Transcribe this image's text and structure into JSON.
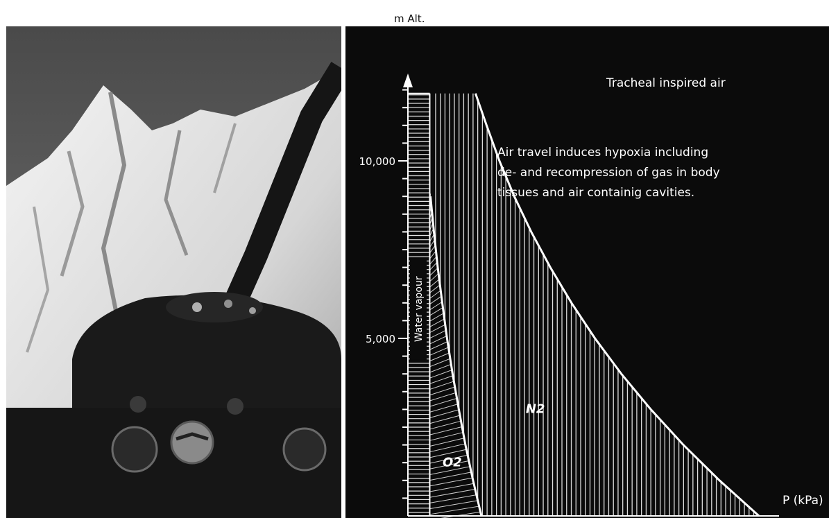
{
  "chart_data": {
    "type": "area",
    "title": "",
    "ylabel": "m Alt.",
    "xlabel": "P (kPa)",
    "y_ticks": [
      {
        "value": 10000,
        "label": "10,000"
      },
      {
        "value": 5000,
        "label": "5,000"
      }
    ],
    "ylim": [
      0,
      12500
    ],
    "series": [
      {
        "name": "Water vapour",
        "value_kpa": 6.3,
        "label_vertical": true
      },
      {
        "name": "O2",
        "x_kpa_by_alt": [
          [
            0,
            21.2
          ],
          [
            1000,
            18.8
          ],
          [
            2000,
            16.6
          ],
          [
            3000,
            14.7
          ],
          [
            4000,
            12.9
          ],
          [
            5000,
            11.3
          ],
          [
            6000,
            9.9
          ],
          [
            7000,
            8.6
          ],
          [
            8000,
            7.5
          ],
          [
            9000,
            6.5
          ]
        ]
      },
      {
        "name": "N2",
        "x_kpa_by_alt": [
          [
            0,
            101.3
          ],
          [
            1000,
            89.9
          ],
          [
            2000,
            79.5
          ],
          [
            3000,
            70.1
          ],
          [
            4000,
            61.6
          ],
          [
            5000,
            54.0
          ],
          [
            6000,
            47.2
          ],
          [
            7000,
            41.1
          ],
          [
            8000,
            35.6
          ],
          [
            9000,
            30.7
          ],
          [
            10000,
            26.4
          ],
          [
            11000,
            22.7
          ],
          [
            11900,
            19.5
          ]
        ]
      }
    ],
    "series_labels": {
      "o2": "O2",
      "n2": "N2",
      "water": "Water vapour"
    },
    "annotations": {
      "tracheal": "Tracheal inspired air",
      "note_lines": [
        "Air travel induces hypoxia including",
        "de- and recompression of gas in body",
        "tissues and air containig cavities."
      ]
    },
    "grid": false
  },
  "photo": {
    "description_icon": "mountain-helicopter-cockpit-photo"
  },
  "colors": {
    "chart_bg": "#0b0b0b",
    "ink": "#ffffff"
  }
}
